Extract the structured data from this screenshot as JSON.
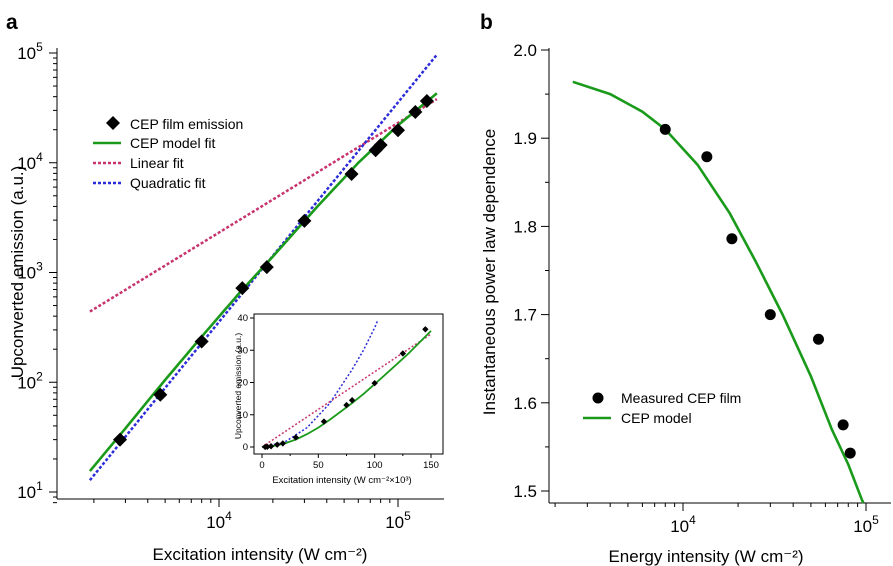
{
  "colors": {
    "model": "#1a9a1a",
    "linear": "#c8336e",
    "quadratic": "#2b2bd9",
    "marker": "#000000"
  },
  "panel_a": {
    "label": "a",
    "xlabel": "Excitation intensity (W cm⁻²)",
    "ylabel": "Upconverted emission (a.u.)",
    "xticks": [
      {
        "v": 10000,
        "base": "10",
        "exp": "4"
      },
      {
        "v": 100000,
        "base": "10",
        "exp": "5"
      }
    ],
    "yticks": [
      {
        "v": 10,
        "base": "10",
        "exp": "1"
      },
      {
        "v": 100,
        "base": "10",
        "exp": "2"
      },
      {
        "v": 1000,
        "base": "10",
        "exp": "3"
      },
      {
        "v": 10000,
        "base": "10",
        "exp": "4"
      },
      {
        "v": 100000,
        "base": "10",
        "exp": "5"
      }
    ],
    "legend": [
      "CEP film emission",
      "CEP model fit",
      "Linear fit",
      "Quadratic fit"
    ],
    "inset": {
      "xlabel": "Excitation intensity (W cm⁻²×10³)",
      "ylabel": "Upconverted emission (a.u.)",
      "xticks": [
        "0",
        "50",
        "100",
        "150"
      ],
      "yticks": [
        "0",
        "10",
        "20",
        "30",
        "40"
      ]
    }
  },
  "panel_b": {
    "label": "b",
    "xlabel": "Energy intensity (W cm⁻²)",
    "ylabel": "Instantaneous power law dependence",
    "xticks": [
      {
        "v": 10000,
        "base": "10",
        "exp": "4"
      },
      {
        "v": 100000,
        "base": "10",
        "exp": "5"
      }
    ],
    "yticks": [
      "1.5",
      "1.6",
      "1.7",
      "1.8",
      "1.9",
      "2.0"
    ],
    "legend": [
      "Measured CEP film",
      "CEP model"
    ]
  },
  "chart_data": [
    {
      "type": "scatter",
      "panel": "a",
      "xscale": "log",
      "yscale": "log",
      "xlim": [
        1900,
        170000
      ],
      "ylim": [
        8,
        100000
      ],
      "series": [
        {
          "name": "CEP film emission",
          "x": [
            2800,
            4700,
            8000,
            13500,
            18500,
            30000,
            55000,
            75000,
            80000,
            100000,
            125000,
            145000
          ],
          "y": [
            30,
            77,
            235,
            720,
            1120,
            2950,
            7900,
            13000,
            14500,
            19800,
            29000,
            36500
          ]
        },
        {
          "name": "CEP model fit",
          "x": [
            1900,
            3000,
            5000,
            8000,
            13000,
            20000,
            35000,
            60000,
            100000,
            165000
          ],
          "y": [
            15.5,
            38,
            105,
            260,
            650,
            1400,
            3900,
            10000,
            22000,
            43000
          ]
        },
        {
          "name": "Linear fit",
          "x": [
            1900,
            165000
          ],
          "y": [
            440,
            38000
          ]
        },
        {
          "name": "Quadratic fit",
          "x": [
            1900,
            165000
          ],
          "y": [
            12.8,
            96500
          ]
        }
      ]
    },
    {
      "type": "scatter",
      "panel": "a-inset",
      "xlim": [
        -5,
        160
      ],
      "ylim": [
        -2,
        42
      ],
      "series": [
        {
          "name": "CEP film emission",
          "x": [
            2.8,
            4.7,
            8,
            13.5,
            18.5,
            30,
            55,
            75,
            80,
            100,
            125,
            145
          ],
          "y": [
            0.03,
            0.077,
            0.235,
            0.72,
            1.12,
            2.95,
            7.9,
            13,
            14.5,
            19.8,
            29,
            36.5
          ]
        },
        {
          "name": "CEP model fit",
          "x": [
            0,
            10,
            20,
            30,
            40,
            50,
            60,
            70,
            80,
            90,
            100,
            110,
            120,
            130,
            140,
            150
          ],
          "y": [
            0,
            0.3,
            1.1,
            2.3,
            4,
            6,
            8.4,
            11,
            13.6,
            16.4,
            19.5,
            22.6,
            25.8,
            29,
            32.5,
            36
          ]
        },
        {
          "name": "Linear fit",
          "x": [
            0,
            150
          ],
          "y": [
            0,
            35
          ]
        },
        {
          "name": "Quadratic fit",
          "x": [
            0,
            20,
            40,
            60,
            80,
            90,
            100,
            103
          ],
          "y": [
            0,
            1.5,
            6,
            13.5,
            24,
            30,
            37,
            39.5
          ]
        }
      ]
    },
    {
      "type": "scatter",
      "panel": "b",
      "xscale": "log",
      "xlim": [
        1300,
        140000
      ],
      "ylim": [
        1.49,
        2.0
      ],
      "series": [
        {
          "name": "Measured CEP film",
          "x": [
            8000,
            13500,
            18500,
            30000,
            55000,
            75000,
            82000
          ],
          "y": [
            1.91,
            1.879,
            1.786,
            1.7,
            1.672,
            1.575,
            1.543
          ]
        },
        {
          "name": "CEP model",
          "x": [
            2500,
            4000,
            6000,
            8000,
            12000,
            18000,
            25000,
            35000,
            50000,
            65000,
            80000,
            95000,
            105000
          ],
          "y": [
            1.964,
            1.95,
            1.93,
            1.91,
            1.87,
            1.815,
            1.76,
            1.7,
            1.63,
            1.57,
            1.53,
            1.49,
            1.47
          ]
        }
      ]
    }
  ]
}
